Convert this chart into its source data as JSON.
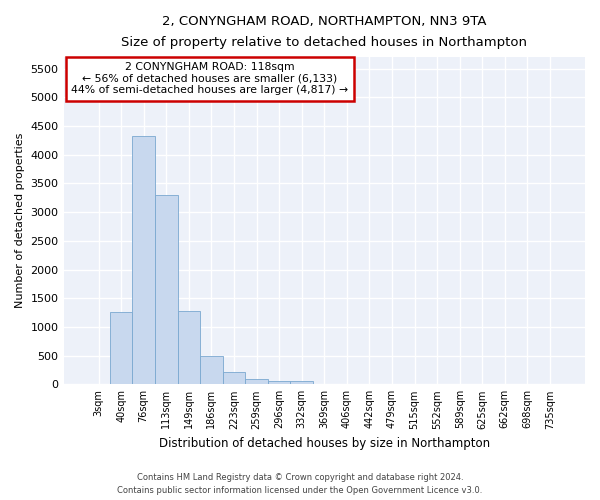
{
  "title": "2, CONYNGHAM ROAD, NORTHAMPTON, NN3 9TA",
  "subtitle": "Size of property relative to detached houses in Northampton",
  "xlabel": "Distribution of detached houses by size in Northampton",
  "ylabel": "Number of detached properties",
  "bar_color": "#c8d8ee",
  "bar_edge_color": "#7aa8d0",
  "background_color": "#edf1f9",
  "grid_color": "#ffffff",
  "categories": [
    "3sqm",
    "40sqm",
    "76sqm",
    "113sqm",
    "149sqm",
    "186sqm",
    "223sqm",
    "259sqm",
    "296sqm",
    "332sqm",
    "369sqm",
    "406sqm",
    "442sqm",
    "479sqm",
    "515sqm",
    "552sqm",
    "589sqm",
    "625sqm",
    "662sqm",
    "698sqm",
    "735sqm"
  ],
  "values": [
    0,
    1260,
    4330,
    3290,
    1280,
    490,
    210,
    90,
    60,
    50,
    0,
    0,
    0,
    0,
    0,
    0,
    0,
    0,
    0,
    0,
    0
  ],
  "ylim": [
    0,
    5700
  ],
  "yticks": [
    0,
    500,
    1000,
    1500,
    2000,
    2500,
    3000,
    3500,
    4000,
    4500,
    5000,
    5500
  ],
  "annotation_title": "2 CONYNGHAM ROAD: 118sqm",
  "annotation_line1": "← 56% of detached houses are smaller (6,133)",
  "annotation_line2": "44% of semi-detached houses are larger (4,817) →",
  "annotation_box_color": "#ffffff",
  "annotation_box_edge_color": "#cc0000",
  "footer_line1": "Contains HM Land Registry data © Crown copyright and database right 2024.",
  "footer_line2": "Contains public sector information licensed under the Open Government Licence v3.0."
}
